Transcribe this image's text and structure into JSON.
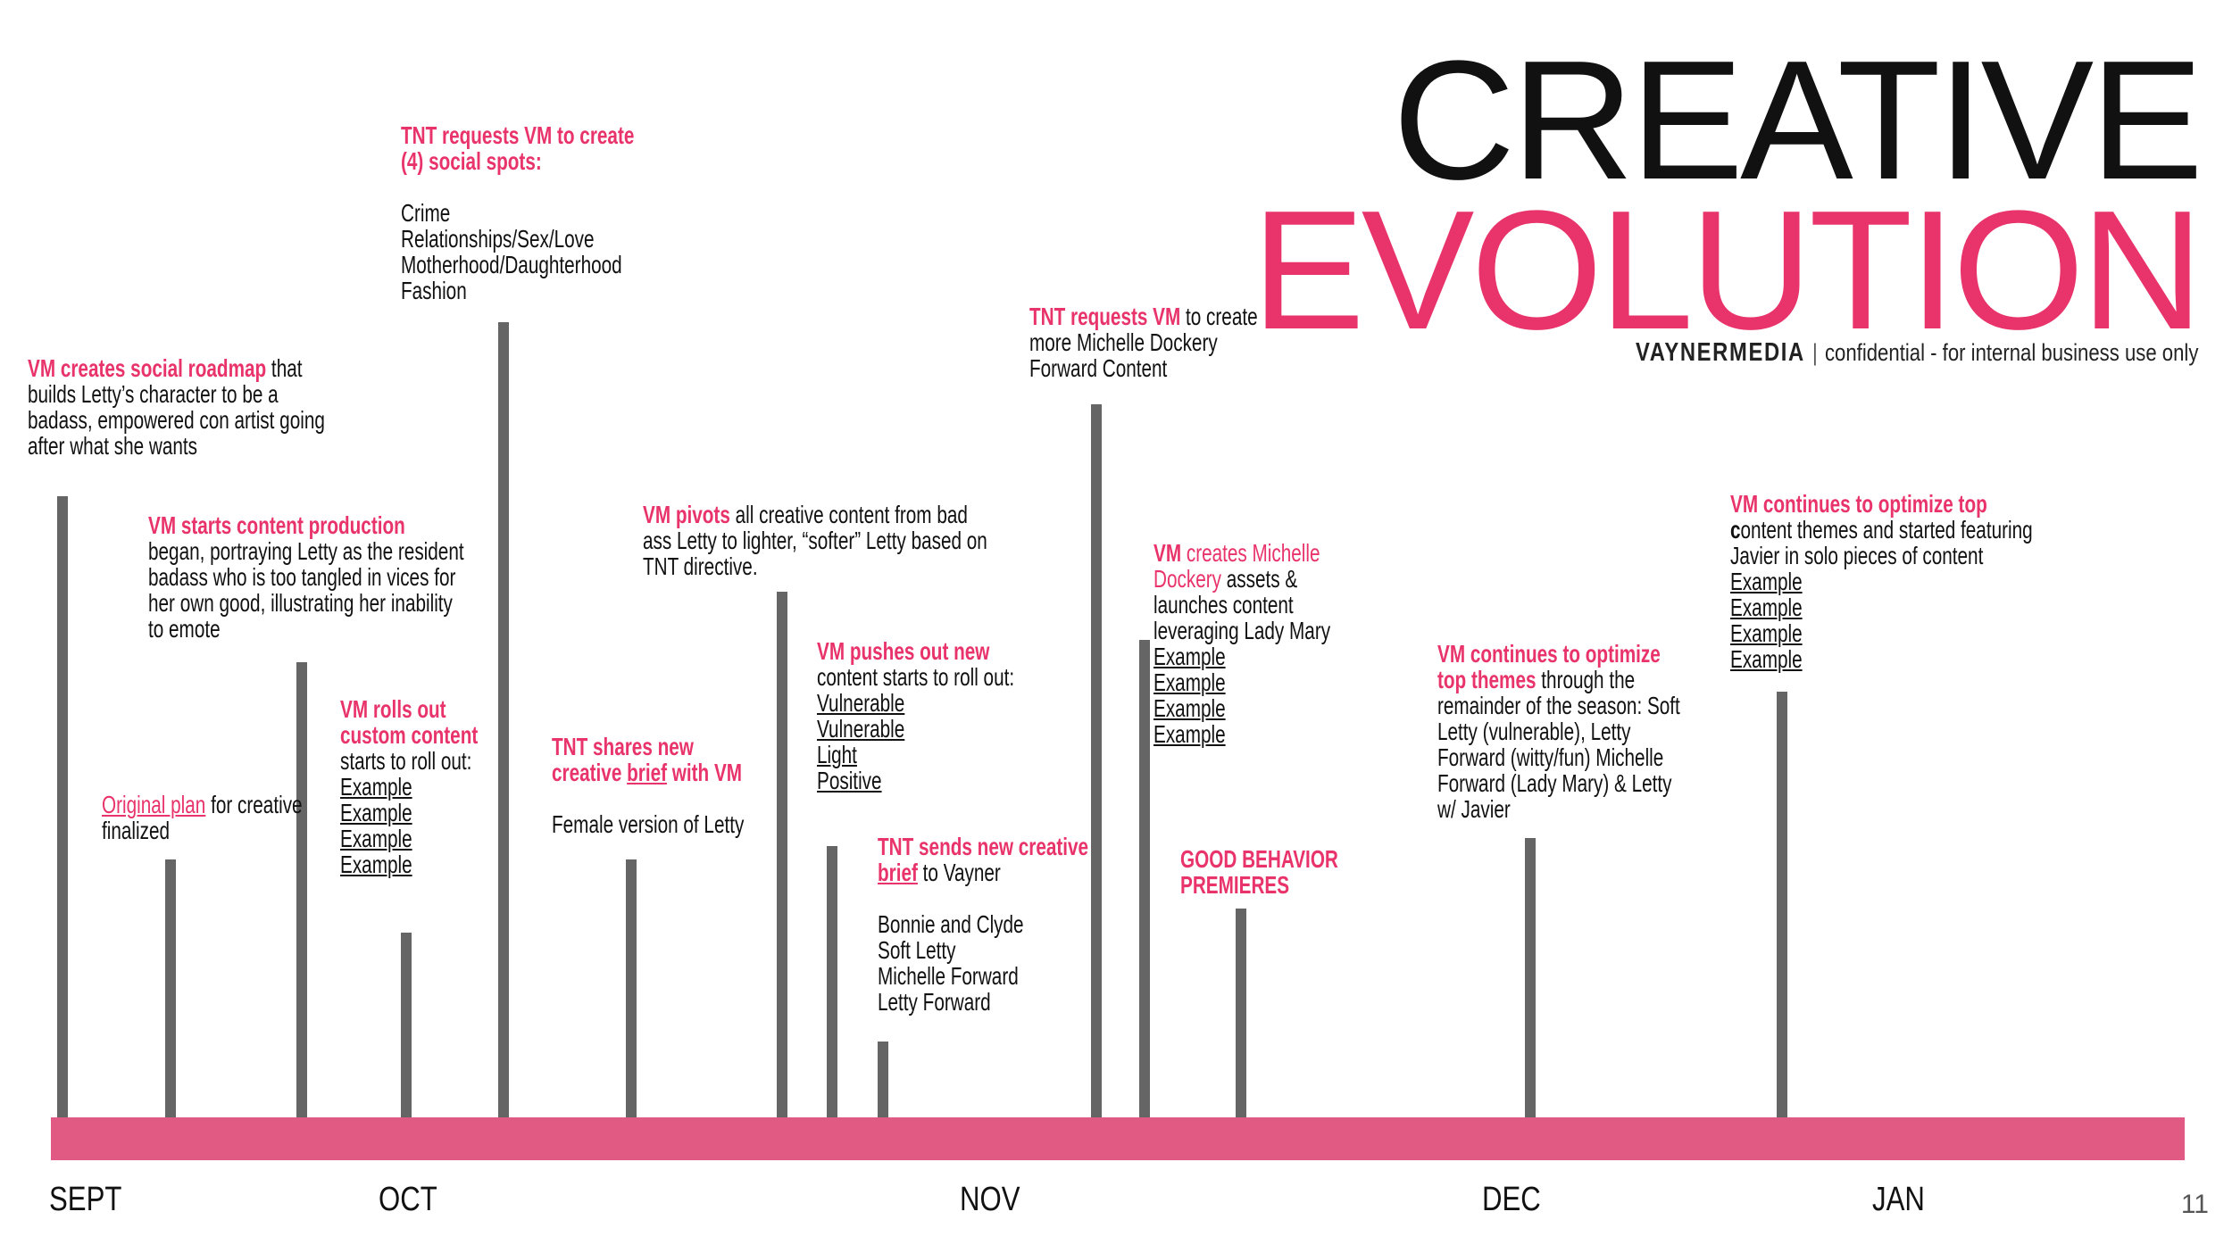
{
  "title": {
    "line1": "CREATIVE",
    "line2": "EVOLUTION"
  },
  "brand": {
    "logo": "VAYNERMEDIA",
    "separator": "|",
    "tagline": "confidential - for internal business use only"
  },
  "page_number": "11",
  "colors": {
    "accent": "#e8336b",
    "timeline": "#e15a83",
    "bars": "#656565"
  },
  "months": [
    "SEPT",
    "OCT",
    "NOV",
    "DEC",
    "JAN"
  ],
  "events": {
    "roadmap": {
      "highlight": "VM creates social roadmap",
      "l1_rest": " that",
      "l2": "builds Letty’s character to be a",
      "l3": "badass, empowered con artist going",
      "l4": "after what she wants"
    },
    "original": {
      "highlight": "Original plan",
      "l1_rest": " for creative",
      "l2": "finalized"
    },
    "production": {
      "title": "VM starts content production",
      "l2": "began, portraying Letty as the resident",
      "l3": "badass who is too tangled in vices for",
      "l4": "her own good, illustrating her inability",
      "l5": "to emote"
    },
    "custom": {
      "l1": "VM rolls out",
      "l2": "custom content",
      "l3": "starts to roll out:",
      "links": [
        "Example",
        "Example",
        "Example",
        "Example"
      ]
    },
    "spots": {
      "l1": "TNT requests VM to create",
      "l2": "(4) social spots:",
      "items": [
        "Crime",
        "Relationships/Sex/Love",
        "Motherhood/Daughterhood",
        "Fashion"
      ]
    },
    "brief1": {
      "l1": "TNT shares new",
      "l2_pre": "creative ",
      "l2_brief": "brief",
      "l2_post": " with VM",
      "l3": "Female version of Letty"
    },
    "pivot": {
      "highlight": "VM pivots",
      "l1_rest": " all creative content from bad",
      "l2": "ass Letty to lighter, “softer” Letty based on",
      "l3": "TNT directive."
    },
    "pushes": {
      "l1": "VM pushes out new",
      "l2": "content starts to roll out:",
      "links": [
        "Vulnerable",
        "Vulnerable",
        "Light",
        "Positive"
      ]
    },
    "brief2": {
      "l1": "TNT sends new creative",
      "l2_brief": "brief",
      "l2_rest": " to Vayner",
      "items": [
        "Bonnie and Clyde",
        "Soft Letty",
        "Michelle Forward",
        "Letty Forward"
      ]
    },
    "dockery_req": {
      "highlight": "TNT requests VM",
      "l1_rest": "  to create",
      "l2": "more Michelle Dockery",
      "l3": "Forward Content"
    },
    "michelle": {
      "hl1": "VM",
      "l1_pink": " creates Michelle",
      "l2_pink": "Dockery",
      "l2_rest": " assets &",
      "l3": "launches content",
      "l4": "leveraging Lady Mary",
      "links": [
        "Example",
        "Example",
        "Example",
        "Example"
      ]
    },
    "premiere": {
      "l1": "GOOD BEHAVIOR",
      "l2": "PREMIERES"
    },
    "optimize1": {
      "l1": "VM continues to optimize",
      "l2_hl": "top themes",
      "l2_rest": " through the",
      "l3": "remainder of the season: Soft",
      "l4": "Letty (vulnerable), Letty",
      "l5": "Forward (witty/fun) Michelle",
      "l6": "Forward (Lady Mary) & Letty",
      "l7": "w/ Javier"
    },
    "optimize2": {
      "l1": "VM continues to optimize top",
      "l2_c": "c",
      "l2_rest": "ontent themes and started featuring",
      "l3": "Javier in solo pieces of content",
      "links": [
        "Example",
        "Example",
        "Example",
        "Example"
      ]
    }
  }
}
